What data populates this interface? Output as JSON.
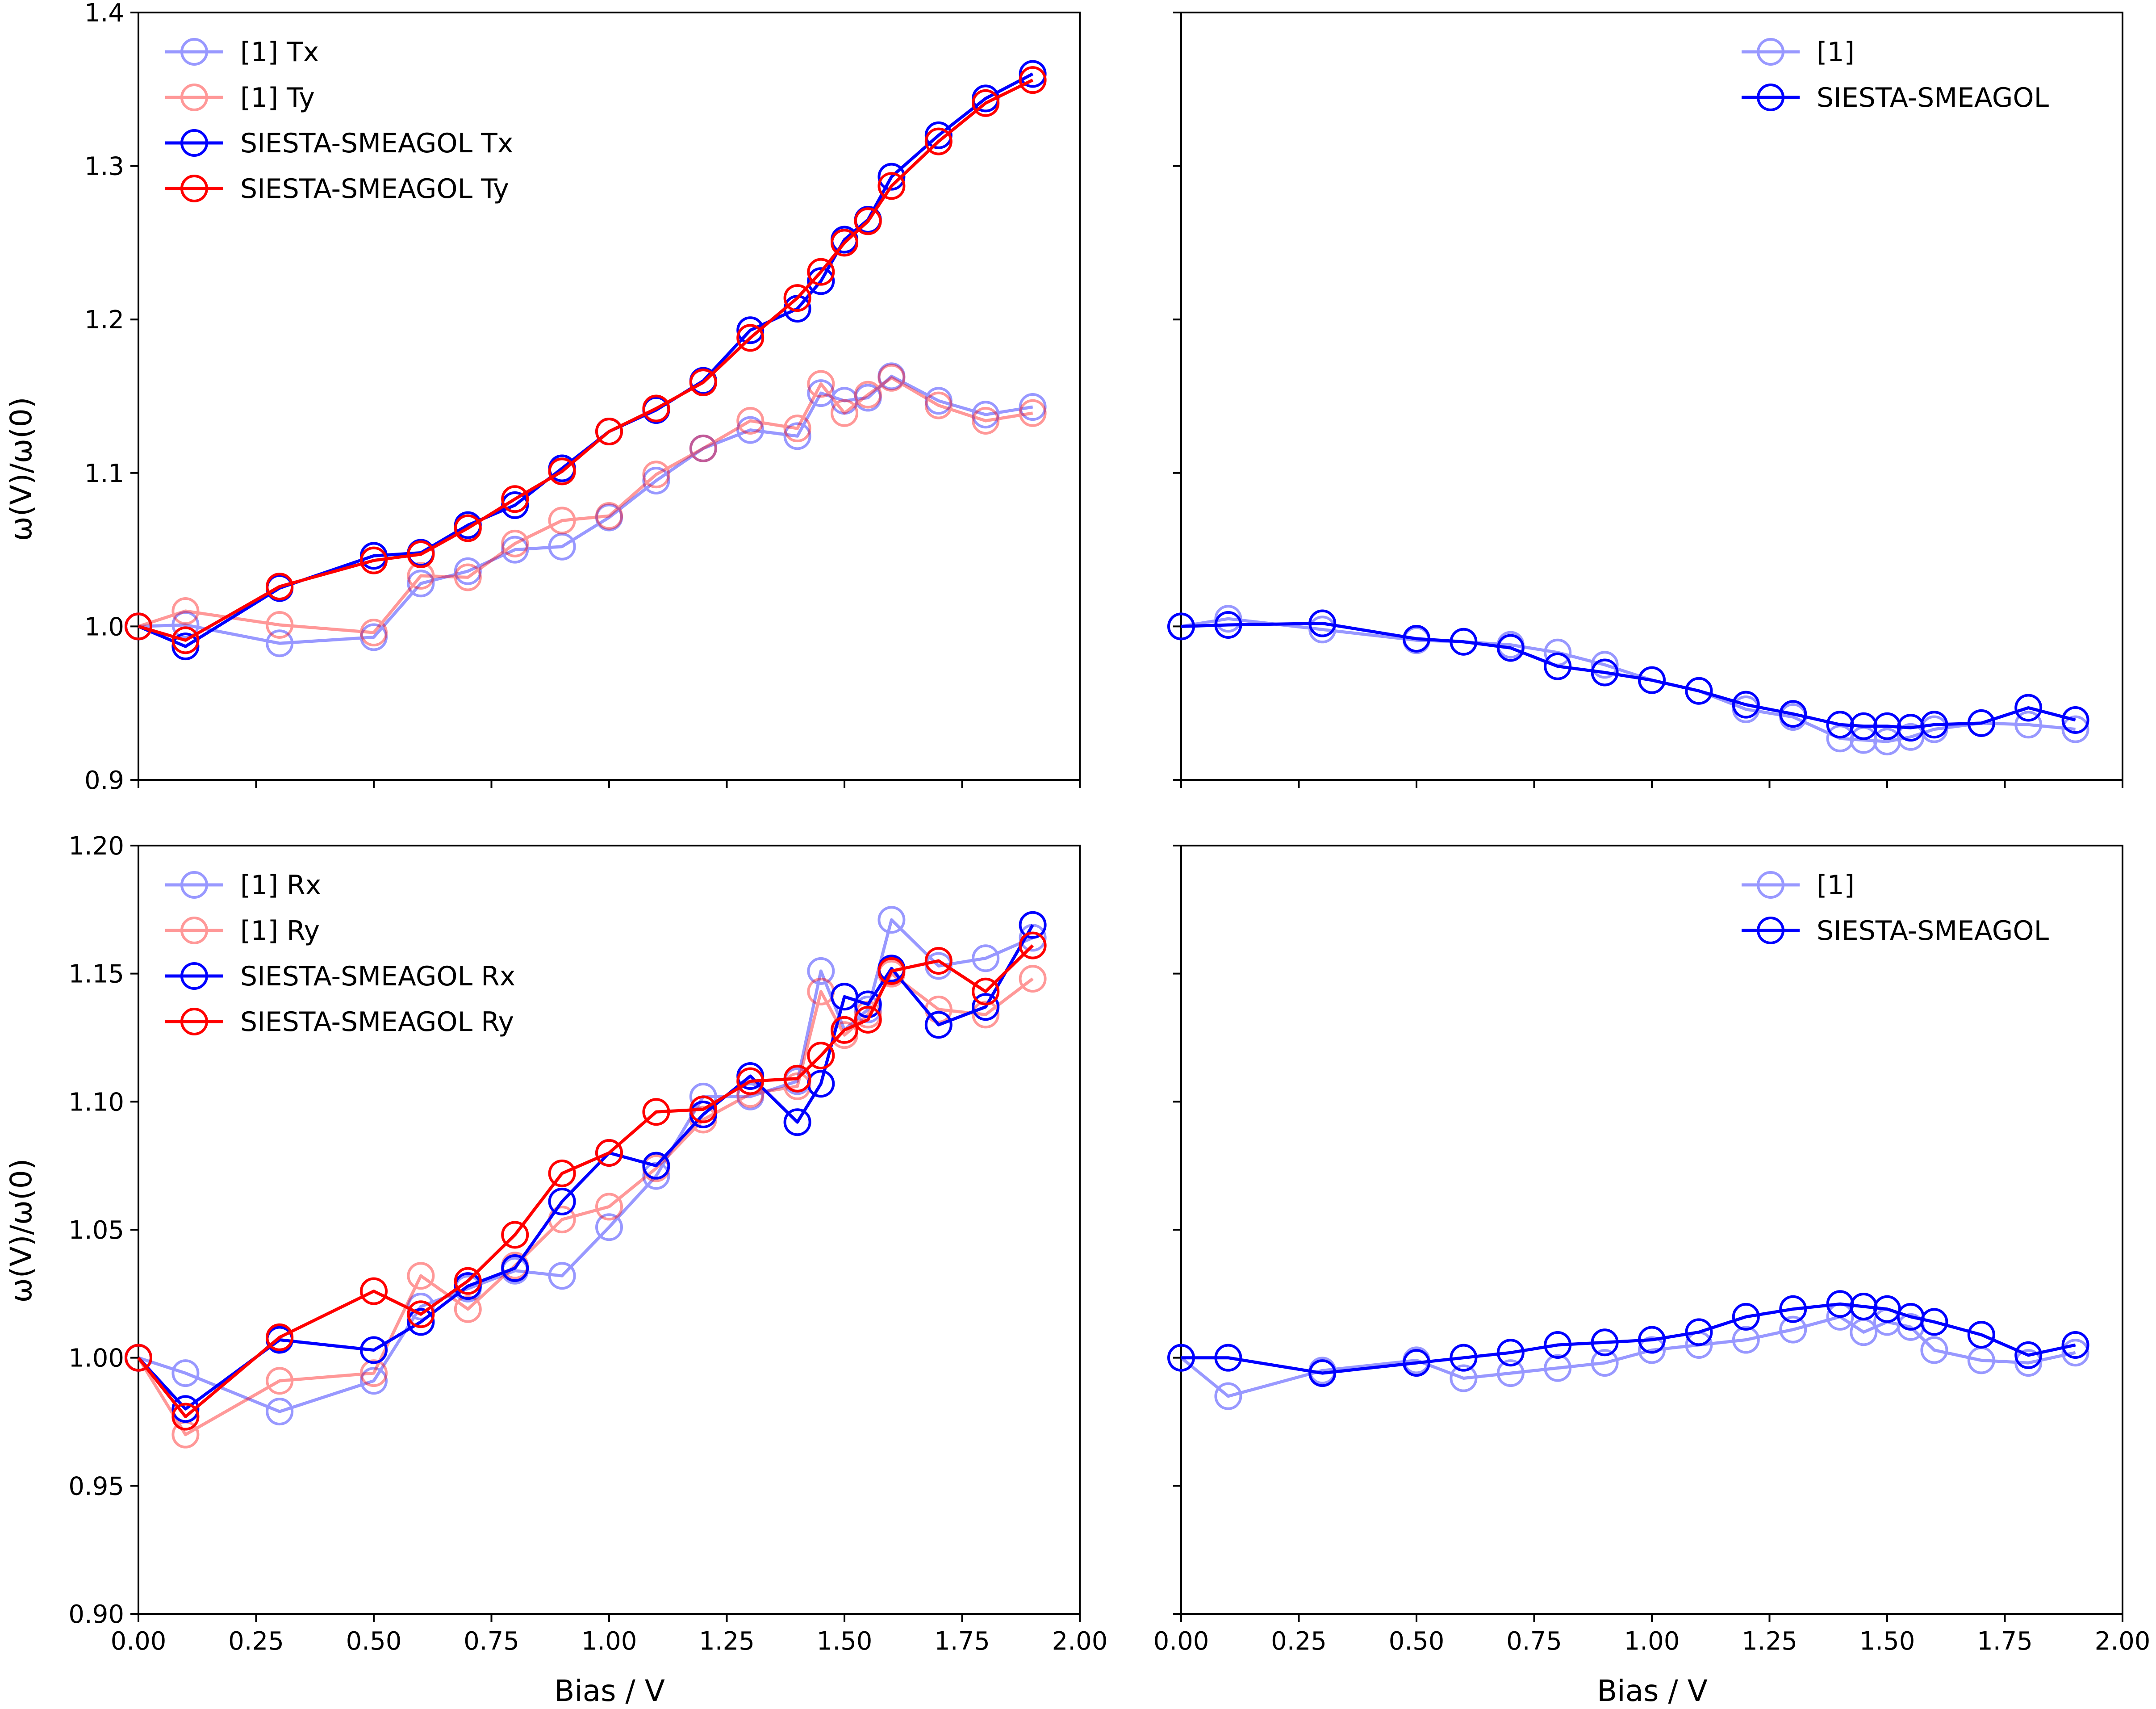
{
  "figure": {
    "xlabel": "Bias / V",
    "ylabel": "ω(V)/ω(0)"
  },
  "colors": {
    "blue": "#0000ff",
    "red": "#ff0000",
    "axes": "#000000",
    "background": "#ffffff"
  },
  "chart_data": [
    {
      "id": "top-left",
      "type": "line",
      "marker": "open-circle",
      "xlabel": "",
      "ylabel": "ω(V)/ω(0)",
      "xlim": [
        0.0,
        2.0
      ],
      "ylim": [
        0.9,
        1.4
      ],
      "xticks": [
        "0.00",
        "0.25",
        "0.50",
        "0.75",
        "1.00",
        "1.25",
        "1.50",
        "1.75",
        "2.00"
      ],
      "xtick_labels_visible": false,
      "yticks": [
        "0.9",
        "1.0",
        "1.1",
        "1.2",
        "1.3",
        "1.4"
      ],
      "ytick_labels_visible": true,
      "grid": false,
      "legend": "top-left",
      "series": [
        {
          "name": "[1] Tx",
          "color": "blue",
          "alpha": 0.4,
          "x": [
            0.0,
            0.1,
            0.3,
            0.5,
            0.6,
            0.7,
            0.8,
            0.9,
            1.0,
            1.1,
            1.2,
            1.3,
            1.4,
            1.45,
            1.5,
            1.55,
            1.6,
            1.7,
            1.8,
            1.9
          ],
          "y": [
            1.0,
            1.001,
            0.989,
            0.993,
            1.028,
            1.036,
            1.05,
            1.052,
            1.071,
            1.095,
            1.116,
            1.128,
            1.124,
            1.152,
            1.147,
            1.149,
            1.163,
            1.147,
            1.138,
            1.143
          ]
        },
        {
          "name": "[1] Ty",
          "color": "red",
          "alpha": 0.4,
          "x": [
            0.0,
            0.1,
            0.3,
            0.5,
            0.6,
            0.7,
            0.8,
            0.9,
            1.0,
            1.1,
            1.2,
            1.3,
            1.4,
            1.45,
            1.5,
            1.55,
            1.6,
            1.7,
            1.8,
            1.9
          ],
          "y": [
            1.0,
            1.01,
            1.001,
            0.996,
            1.033,
            1.032,
            1.054,
            1.069,
            1.072,
            1.099,
            1.116,
            1.134,
            1.129,
            1.158,
            1.139,
            1.151,
            1.162,
            1.144,
            1.134,
            1.139
          ]
        },
        {
          "name": "SIESTA-SMEAGOL Tx",
          "color": "blue",
          "alpha": 1.0,
          "x": [
            0.0,
            0.1,
            0.3,
            0.5,
            0.6,
            0.7,
            0.8,
            0.9,
            1.0,
            1.1,
            1.2,
            1.3,
            1.4,
            1.45,
            1.5,
            1.55,
            1.6,
            1.7,
            1.8,
            1.9
          ],
          "y": [
            1.0,
            0.987,
            1.025,
            1.046,
            1.048,
            1.066,
            1.079,
            1.103,
            1.127,
            1.141,
            1.16,
            1.193,
            1.207,
            1.225,
            1.252,
            1.265,
            1.293,
            1.32,
            1.344,
            1.36
          ]
        },
        {
          "name": "SIESTA-SMEAGOL Ty",
          "color": "red",
          "alpha": 1.0,
          "x": [
            0.0,
            0.1,
            0.3,
            0.5,
            0.6,
            0.7,
            0.8,
            0.9,
            1.0,
            1.1,
            1.2,
            1.3,
            1.4,
            1.45,
            1.5,
            1.55,
            1.6,
            1.7,
            1.8,
            1.9
          ],
          "y": [
            1.0,
            0.991,
            1.026,
            1.043,
            1.047,
            1.064,
            1.083,
            1.101,
            1.127,
            1.142,
            1.159,
            1.188,
            1.214,
            1.231,
            1.25,
            1.264,
            1.287,
            1.316,
            1.341,
            1.356
          ]
        }
      ]
    },
    {
      "id": "top-right",
      "type": "line",
      "marker": "open-circle",
      "xlabel": "",
      "ylabel": "",
      "xlim": [
        0.0,
        2.0
      ],
      "ylim": [
        0.9,
        1.4
      ],
      "xticks": [
        "0.00",
        "0.25",
        "0.50",
        "0.75",
        "1.00",
        "1.25",
        "1.50",
        "1.75",
        "2.00"
      ],
      "xtick_labels_visible": false,
      "yticks": [
        "0.9",
        "1.0",
        "1.1",
        "1.2",
        "1.3",
        "1.4"
      ],
      "ytick_labels_visible": false,
      "grid": false,
      "legend": "top-right",
      "series": [
        {
          "name": "[1]",
          "color": "blue",
          "alpha": 0.4,
          "x": [
            0.0,
            0.1,
            0.3,
            0.5,
            0.6,
            0.7,
            0.8,
            0.9,
            1.0,
            1.1,
            1.2,
            1.3,
            1.4,
            1.45,
            1.5,
            1.55,
            1.6,
            1.7,
            1.8,
            1.9
          ],
          "y": [
            1.0,
            1.005,
            0.998,
            0.991,
            0.99,
            0.988,
            0.983,
            0.975,
            0.965,
            0.958,
            0.946,
            0.941,
            0.927,
            0.926,
            0.925,
            0.928,
            0.933,
            0.937,
            0.936,
            0.933
          ]
        },
        {
          "name": "SIESTA-SMEAGOL",
          "color": "blue",
          "alpha": 1.0,
          "x": [
            0.0,
            0.1,
            0.3,
            0.5,
            0.6,
            0.7,
            0.8,
            0.9,
            1.0,
            1.1,
            1.2,
            1.3,
            1.4,
            1.45,
            1.5,
            1.55,
            1.6,
            1.7,
            1.8,
            1.9
          ],
          "y": [
            1.0,
            1.001,
            1.002,
            0.992,
            0.99,
            0.986,
            0.974,
            0.97,
            0.965,
            0.958,
            0.949,
            0.943,
            0.936,
            0.935,
            0.935,
            0.934,
            0.936,
            0.937,
            0.947,
            0.939
          ]
        }
      ]
    },
    {
      "id": "bottom-left",
      "type": "line",
      "marker": "open-circle",
      "xlabel": "Bias / V",
      "ylabel": "ω(V)/ω(0)",
      "xlim": [
        0.0,
        2.0
      ],
      "ylim": [
        0.9,
        1.2
      ],
      "xticks": [
        "0.00",
        "0.25",
        "0.50",
        "0.75",
        "1.00",
        "1.25",
        "1.50",
        "1.75",
        "2.00"
      ],
      "xtick_labels_visible": true,
      "yticks": [
        "0.90",
        "0.95",
        "1.00",
        "1.05",
        "1.10",
        "1.15",
        "1.20"
      ],
      "ytick_labels_visible": true,
      "grid": false,
      "legend": "top-left",
      "series": [
        {
          "name": "[1] Rx",
          "color": "blue",
          "alpha": 0.4,
          "x": [
            0.0,
            0.1,
            0.3,
            0.5,
            0.6,
            0.7,
            0.8,
            0.9,
            1.0,
            1.1,
            1.2,
            1.3,
            1.4,
            1.45,
            1.5,
            1.55,
            1.6,
            1.7,
            1.8,
            1.9
          ],
          "y": [
            1.0,
            0.994,
            0.979,
            0.991,
            1.02,
            1.027,
            1.034,
            1.032,
            1.051,
            1.071,
            1.102,
            1.102,
            1.108,
            1.151,
            1.128,
            1.136,
            1.171,
            1.153,
            1.156,
            1.164
          ]
        },
        {
          "name": "[1] Ry",
          "color": "red",
          "alpha": 0.4,
          "x": [
            0.0,
            0.1,
            0.3,
            0.5,
            0.6,
            0.7,
            0.8,
            0.9,
            1.0,
            1.1,
            1.2,
            1.3,
            1.4,
            1.45,
            1.5,
            1.55,
            1.6,
            1.7,
            1.8,
            1.9
          ],
          "y": [
            1.0,
            0.97,
            0.991,
            0.994,
            1.032,
            1.019,
            1.036,
            1.054,
            1.059,
            1.074,
            1.093,
            1.103,
            1.106,
            1.143,
            1.126,
            1.134,
            1.15,
            1.136,
            1.134,
            1.148
          ]
        },
        {
          "name": "SIESTA-SMEAGOL Rx",
          "color": "blue",
          "alpha": 1.0,
          "x": [
            0.0,
            0.1,
            0.3,
            0.5,
            0.6,
            0.7,
            0.8,
            0.9,
            1.0,
            1.1,
            1.2,
            1.3,
            1.4,
            1.45,
            1.5,
            1.55,
            1.6,
            1.7,
            1.8,
            1.9
          ],
          "y": [
            1.0,
            0.98,
            1.007,
            1.003,
            1.014,
            1.028,
            1.035,
            1.061,
            1.08,
            1.075,
            1.095,
            1.11,
            1.092,
            1.107,
            1.141,
            1.138,
            1.152,
            1.13,
            1.137,
            1.169
          ]
        },
        {
          "name": "SIESTA-SMEAGOL Ry",
          "color": "red",
          "alpha": 1.0,
          "x": [
            0.0,
            0.1,
            0.3,
            0.5,
            0.6,
            0.7,
            0.8,
            0.9,
            1.0,
            1.1,
            1.2,
            1.3,
            1.4,
            1.45,
            1.5,
            1.55,
            1.6,
            1.7,
            1.8,
            1.9
          ],
          "y": [
            1.0,
            0.977,
            1.008,
            1.026,
            1.017,
            1.03,
            1.048,
            1.072,
            1.08,
            1.096,
            1.097,
            1.108,
            1.109,
            1.118,
            1.128,
            1.132,
            1.151,
            1.155,
            1.143,
            1.161
          ]
        }
      ]
    },
    {
      "id": "bottom-right",
      "type": "line",
      "marker": "open-circle",
      "xlabel": "Bias / V",
      "ylabel": "",
      "xlim": [
        0.0,
        2.0
      ],
      "ylim": [
        0.9,
        1.2
      ],
      "xticks": [
        "0.00",
        "0.25",
        "0.50",
        "0.75",
        "1.00",
        "1.25",
        "1.50",
        "1.75",
        "2.00"
      ],
      "xtick_labels_visible": true,
      "yticks": [
        "0.90",
        "0.95",
        "1.00",
        "1.05",
        "1.10",
        "1.15",
        "1.20"
      ],
      "ytick_labels_visible": false,
      "grid": false,
      "legend": "top-right",
      "series": [
        {
          "name": "[1]",
          "color": "blue",
          "alpha": 0.4,
          "x": [
            0.0,
            0.1,
            0.3,
            0.5,
            0.6,
            0.7,
            0.8,
            0.9,
            1.0,
            1.1,
            1.2,
            1.3,
            1.4,
            1.45,
            1.5,
            1.55,
            1.6,
            1.7,
            1.8,
            1.9
          ],
          "y": [
            1.0,
            0.985,
            0.995,
            0.999,
            0.992,
            0.994,
            0.996,
            0.998,
            1.003,
            1.005,
            1.007,
            1.011,
            1.016,
            1.01,
            1.014,
            1.012,
            1.003,
            0.999,
            0.998,
            1.002
          ]
        },
        {
          "name": "SIESTA-SMEAGOL",
          "color": "blue",
          "alpha": 1.0,
          "x": [
            0.0,
            0.1,
            0.3,
            0.5,
            0.6,
            0.7,
            0.8,
            0.9,
            1.0,
            1.1,
            1.2,
            1.3,
            1.4,
            1.45,
            1.5,
            1.55,
            1.6,
            1.7,
            1.8,
            1.9
          ],
          "y": [
            1.0,
            1.0,
            0.994,
            0.998,
            1.0,
            1.002,
            1.005,
            1.006,
            1.007,
            1.01,
            1.016,
            1.019,
            1.021,
            1.02,
            1.019,
            1.016,
            1.014,
            1.009,
            1.001,
            1.005
          ]
        }
      ]
    }
  ]
}
